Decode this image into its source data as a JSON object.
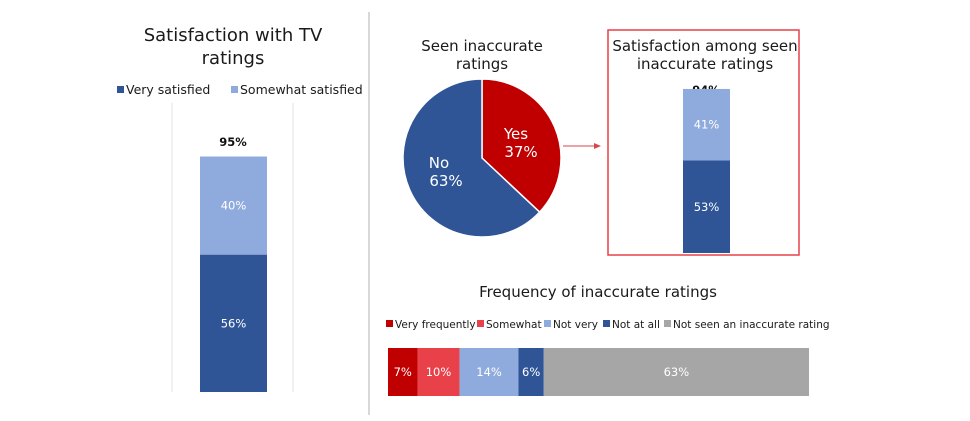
{
  "colors": {
    "very_satisfied": "#2f5597",
    "somewhat_satisfied": "#8faadc",
    "pie_yes": "#c00000",
    "pie_no": "#2f5597",
    "highlight_box": "#e8414a",
    "arrow": "#d9464f",
    "very_frequently": "#c00000",
    "somewhat": "#e8414a",
    "not_very": "#8faadc",
    "not_at_all": "#2f5597",
    "not_seen": "#a6a6a6",
    "divider": "#bfbfbf",
    "gridline": "#e3e3e3"
  },
  "chart_data": [
    {
      "type": "bar",
      "stacked": true,
      "title_lines": [
        "Satisfaction with TV",
        "ratings"
      ],
      "legend_placement": "top",
      "legend": [
        "Very satisfied",
        "Somewhat satisfied"
      ],
      "total_label": "95%",
      "ylim": [
        0,
        100
      ],
      "series": [
        {
          "name": "Very satisfied",
          "values": [
            56
          ],
          "label": "56%"
        },
        {
          "name": "Somewhat satisfied",
          "values": [
            40
          ],
          "label": "40%"
        }
      ]
    },
    {
      "type": "pie",
      "title_lines": [
        "Seen inaccurate",
        "ratings"
      ],
      "slices": [
        {
          "name": "Yes",
          "value": 37,
          "label": "37%"
        },
        {
          "name": "No",
          "value": 63,
          "label": "63%"
        }
      ]
    },
    {
      "type": "bar",
      "stacked": true,
      "title_lines": [
        "Satisfaction among seen",
        "inaccurate ratings"
      ],
      "total_label": "94%",
      "ylim": [
        0,
        100
      ],
      "series": [
        {
          "name": "Very satisfied",
          "values": [
            53
          ],
          "label": "53%"
        },
        {
          "name": "Somewhat satisfied",
          "values": [
            41
          ],
          "label": "41%"
        }
      ]
    },
    {
      "type": "bar",
      "stacked": true,
      "orientation": "horizontal",
      "title": "Frequency of inaccurate ratings",
      "legend_placement": "top",
      "xlim": [
        0,
        100
      ],
      "series": [
        {
          "name": "Very frequently",
          "values": [
            7
          ],
          "label": "7%"
        },
        {
          "name": "Somewhat",
          "values": [
            10
          ],
          "label": "10%"
        },
        {
          "name": "Not very",
          "values": [
            14
          ],
          "label": "14%"
        },
        {
          "name": "Not at all",
          "values": [
            6
          ],
          "label": "6%"
        },
        {
          "name": "Not seen an inaccurate rating",
          "values": [
            63
          ],
          "label": "63%"
        }
      ]
    }
  ]
}
